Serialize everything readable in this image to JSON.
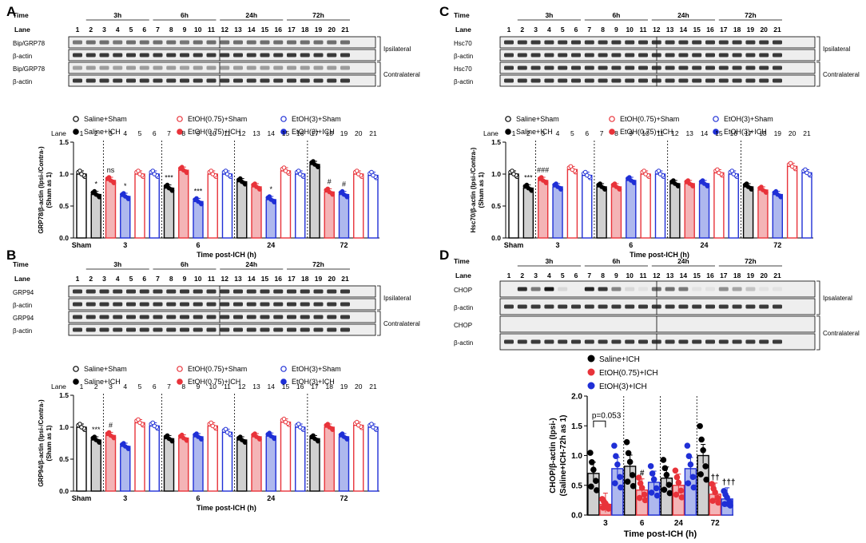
{
  "panel_letters": [
    "A",
    "B",
    "C",
    "D"
  ],
  "colors": {
    "black": "#000000",
    "red": "#e8333a",
    "blue": "#1f2fd6",
    "saline_fill": "#d0d0d0",
    "red_fill": "#f4b4b6",
    "blue_fill": "#aeb8ee",
    "band": "#1a1a1a",
    "blot_bg": "#eeeeee"
  },
  "blot_labels": {
    "time": "Time",
    "lane": "Lane",
    "times": [
      "3h",
      "6h",
      "24h",
      "72h"
    ],
    "lane_numbers": [
      "1",
      "2",
      "3",
      "4",
      "5",
      "6",
      "7",
      "8",
      "9",
      "10",
      "11",
      "12",
      "13",
      "14",
      "15",
      "16",
      "17",
      "18",
      "19",
      "20",
      "21"
    ],
    "ipsilateral": "Ipsilateral",
    "contralateral": "Contralateral",
    "ipsalateral": "Ipsalateral",
    "actin": "β-actin",
    "A_row1": "Bip/GRP78",
    "A_row3": "Bip/GRP78",
    "B_row1": "GRP94",
    "B_row3": "GRP94",
    "C_row1": "Hsc70",
    "C_row3": "Hsc70",
    "D_row1": "CHOP",
    "D_row3": "CHOP"
  },
  "legend_items": [
    {
      "label": "Saline+Sham"
    },
    {
      "label": "EtOH(0.75)+Sham"
    },
    {
      "label": "EtOH(3)+Sham"
    },
    {
      "label": "Saline+ICH"
    },
    {
      "label": "EtOH(0.75)+ICH"
    },
    {
      "label": "EtOH(3)+ICH"
    }
  ],
  "chart_data": [
    {
      "panel": "A",
      "type": "bar",
      "ylabel": "GRP78/β-actin (Ipsi-/Contra-)\n(Sham as 1)",
      "xlabel": "Time post-ICH (h)",
      "yticks": [
        "0.0",
        "0.5",
        "1.0",
        "1.5"
      ],
      "ylim": [
        0,
        1.5
      ],
      "group_labels": [
        "Sham",
        "3",
        "6",
        "24",
        "72"
      ],
      "lanes": [
        "1",
        "2",
        "3",
        "4",
        "5",
        "6",
        "7",
        "8",
        "9",
        "10",
        "11",
        "12",
        "13",
        "14",
        "15",
        "16",
        "17",
        "18",
        "19",
        "20",
        "21"
      ],
      "values": [
        1.0,
        0.68,
        0.9,
        0.65,
        1.0,
        1.0,
        0.78,
        1.06,
        0.57,
        1.0,
        1.0,
        0.88,
        0.8,
        0.6,
        1.05,
        1.0,
        1.15,
        0.72,
        0.68,
        1.0,
        0.98
      ],
      "annotations": [
        {
          "lane": 2,
          "text": "*"
        },
        {
          "lane": 3,
          "text": "ns"
        },
        {
          "lane": 4,
          "text": "*"
        },
        {
          "lane": 7,
          "text": "***"
        },
        {
          "lane": 9,
          "text": "***"
        },
        {
          "lane": 14,
          "text": "*"
        },
        {
          "lane": 18,
          "text": "#"
        },
        {
          "lane": 19,
          "text": "#"
        }
      ]
    },
    {
      "panel": "B",
      "type": "bar",
      "ylabel": "GRP94/β-actin (Ipsi-/Contra-)\n(Sham as 1)",
      "xlabel": "Time post-ICH (h)",
      "yticks": [
        "0.0",
        "0.5",
        "1.0",
        "1.5"
      ],
      "ylim": [
        0,
        1.5
      ],
      "group_labels": [
        "Sham",
        "3",
        "6",
        "24",
        "72"
      ],
      "lanes": [
        "1",
        "2",
        "3",
        "4",
        "5",
        "6",
        "7",
        "8",
        "9",
        "10",
        "11",
        "12",
        "13",
        "14",
        "15",
        "16",
        "17",
        "18",
        "19",
        "20",
        "21"
      ],
      "values": [
        1.0,
        0.8,
        0.87,
        0.7,
        1.07,
        1.02,
        0.82,
        0.83,
        0.85,
        1.02,
        0.92,
        0.8,
        0.85,
        0.86,
        1.08,
        1.0,
        0.82,
        1.0,
        0.85,
        1.03,
        1.0
      ],
      "annotations": [
        {
          "lane": 2,
          "text": "***"
        },
        {
          "lane": 3,
          "text": "#"
        }
      ]
    },
    {
      "panel": "C",
      "type": "bar",
      "ylabel": "Hsc70/β-actin (Ipsi-/Contra-)\n(Sham as 1)",
      "xlabel": "Time post-ICH (h)",
      "yticks": [
        "0.0",
        "0.5",
        "1.0",
        "1.5"
      ],
      "ylim": [
        0,
        1.5
      ],
      "group_labels": [
        "Sham",
        "3",
        "6",
        "24",
        "72"
      ],
      "lanes": [
        "1",
        "2",
        "3",
        "4",
        "5",
        "6",
        "7",
        "8",
        "9",
        "10",
        "11",
        "12",
        "13",
        "14",
        "15",
        "16",
        "17",
        "18",
        "19",
        "20",
        "21"
      ],
      "values": [
        1.0,
        0.78,
        0.9,
        0.8,
        1.07,
        0.98,
        0.8,
        0.8,
        0.9,
        1.0,
        1.0,
        0.85,
        0.85,
        0.85,
        1.02,
        1.0,
        0.8,
        0.75,
        0.68,
        1.12,
        1.02
      ],
      "annotations": [
        {
          "lane": 2,
          "text": "***"
        },
        {
          "lane": 3,
          "text": "###"
        }
      ]
    },
    {
      "panel": "D",
      "type": "bar",
      "ylabel": "CHOP/β-actin (Ipsi-)\n(Saline+ICH-72h as 1)",
      "xlabel": "Time post-ICH (h)",
      "yticks": [
        "0.0",
        "0.5",
        "1.0",
        "1.5",
        "2.0"
      ],
      "ylim": [
        0,
        2.0
      ],
      "group_labels": [
        "3",
        "6",
        "24",
        "72"
      ],
      "legend": [
        "Saline+ICH",
        "EtOH(0.75)+ICH",
        "EtOH(3)+ICH"
      ],
      "series": [
        {
          "name": "Saline+ICH",
          "values": [
            0.7,
            0.82,
            0.62,
            1.0
          ]
        },
        {
          "name": "EtOH(0.75)+ICH",
          "values": [
            0.18,
            0.42,
            0.5,
            0.35
          ]
        },
        {
          "name": "EtOH(3)+ICH",
          "values": [
            0.78,
            0.55,
            0.78,
            0.27
          ]
        }
      ],
      "pvalue_label": "p=0.053",
      "annotations": [
        {
          "group": 1,
          "series": 1,
          "text": "#"
        },
        {
          "group": 3,
          "series": 1,
          "text": "††"
        },
        {
          "group": 3,
          "series": 2,
          "text": "†††"
        }
      ]
    }
  ]
}
